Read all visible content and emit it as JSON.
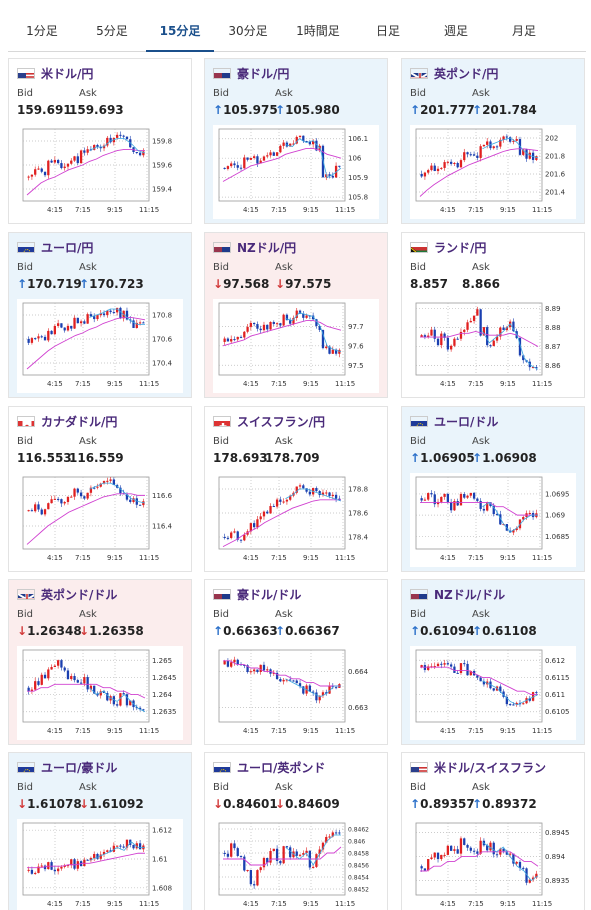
{
  "tabs": [
    {
      "label": "1分足",
      "active": false
    },
    {
      "label": "5分足",
      "active": false
    },
    {
      "label": "15分足",
      "active": true
    },
    {
      "label": "30分足",
      "active": false
    },
    {
      "label": "1時間足",
      "active": false
    },
    {
      "label": "日足",
      "active": false
    },
    {
      "label": "週足",
      "active": false
    },
    {
      "label": "月足",
      "active": false
    }
  ],
  "labels": {
    "bid": "Bid",
    "ask": "Ask"
  },
  "xticks": [
    "4:15",
    "7:15",
    "9:15",
    "11:15"
  ],
  "pairs": [
    {
      "name": "米ドル/円",
      "flag": "us-jp",
      "bg": "white",
      "bid": "159.691",
      "ask": "159.693",
      "bid_dir": "",
      "ask_dir": "",
      "chart_data": {
        "type": "candlestick",
        "y_ticks": [
          "159.8",
          "159.6",
          "159.4"
        ],
        "ylim": [
          159.3,
          159.9
        ],
        "trend": [
          159.5,
          159.55,
          159.55,
          159.6,
          159.62,
          159.6,
          159.62,
          159.65,
          159.7,
          159.72,
          159.75,
          159.75,
          159.8,
          159.82,
          159.82,
          159.78,
          159.72,
          159.7
        ],
        "ma": [
          159.35,
          159.4,
          159.45,
          159.48,
          159.5,
          159.53,
          159.56,
          159.58,
          159.6,
          159.63,
          159.65,
          159.68,
          159.7,
          159.72,
          159.73,
          159.73,
          159.72,
          159.72
        ]
      }
    },
    {
      "name": "豪ドル/円",
      "flag": "au-jp",
      "bg": "blue",
      "bid": "105.975",
      "ask": "105.980",
      "bid_dir": "up",
      "ask_dir": "up",
      "chart_data": {
        "type": "candlestick",
        "y_ticks": [
          "106.1",
          "106",
          "105.9",
          "105.8"
        ],
        "ylim": [
          105.78,
          106.15
        ],
        "trend": [
          105.95,
          105.97,
          105.95,
          106.0,
          106.02,
          105.98,
          106.0,
          106.03,
          106.05,
          106.07,
          106.06,
          106.1,
          106.08,
          106.09,
          106.05,
          105.9,
          105.92,
          105.95
        ],
        "ma": [
          105.88,
          105.9,
          105.92,
          105.94,
          105.96,
          105.97,
          105.98,
          105.99,
          106.0,
          106.02,
          106.03,
          106.04,
          106.05,
          106.05,
          106.04,
          106.02,
          106.01,
          106.0
        ]
      }
    },
    {
      "name": "英ポンド/円",
      "flag": "gb-jp",
      "bg": "blue",
      "bid": "201.777",
      "ask": "201.784",
      "bid_dir": "up",
      "ask_dir": "up",
      "chart_data": {
        "type": "candlestick",
        "y_ticks": [
          "202",
          "201.8",
          "201.6",
          "201.4"
        ],
        "ylim": [
          201.3,
          202.1
        ],
        "trend": [
          201.6,
          201.65,
          201.62,
          201.7,
          201.75,
          201.72,
          201.8,
          201.85,
          201.82,
          201.88,
          201.92,
          201.95,
          201.98,
          202.0,
          201.95,
          201.85,
          201.8,
          201.78
        ],
        "ma": [
          201.35,
          201.42,
          201.48,
          201.53,
          201.58,
          201.62,
          201.66,
          201.7,
          201.73,
          201.76,
          201.79,
          201.82,
          201.85,
          201.87,
          201.88,
          201.88,
          201.87,
          201.86
        ]
      }
    },
    {
      "name": "ユーロ/円",
      "flag": "eu-jp",
      "bg": "blue",
      "bid": "170.719",
      "ask": "170.723",
      "bid_dir": "up",
      "ask_dir": "up",
      "chart_data": {
        "type": "candlestick",
        "y_ticks": [
          "170.8",
          "170.6",
          "170.4"
        ],
        "ylim": [
          170.3,
          170.9
        ],
        "trend": [
          170.6,
          170.62,
          170.6,
          170.65,
          170.7,
          170.68,
          170.72,
          170.75,
          170.74,
          170.78,
          170.8,
          170.82,
          170.85,
          170.85,
          170.8,
          170.75,
          170.72,
          170.72
        ],
        "ma": [
          170.35,
          170.4,
          170.45,
          170.5,
          170.54,
          170.57,
          170.6,
          170.63,
          170.65,
          170.68,
          170.7,
          170.73,
          170.75,
          170.77,
          170.78,
          170.78,
          170.77,
          170.76
        ]
      }
    },
    {
      "name": "NZドル/円",
      "flag": "nz-jp",
      "bg": "pink",
      "bid": "97.568",
      "ask": "97.575",
      "bid_dir": "down",
      "ask_dir": "down",
      "chart_data": {
        "type": "candlestick",
        "y_ticks": [
          "97.7",
          "97.6",
          "97.5"
        ],
        "ylim": [
          97.45,
          97.82
        ],
        "trend": [
          97.62,
          97.65,
          97.63,
          97.68,
          97.7,
          97.67,
          97.7,
          97.72,
          97.7,
          97.74,
          97.73,
          97.77,
          97.76,
          97.75,
          97.7,
          97.6,
          97.58,
          97.57
        ],
        "ma": [
          97.6,
          97.61,
          97.62,
          97.63,
          97.65,
          97.66,
          97.67,
          97.68,
          97.69,
          97.7,
          97.71,
          97.72,
          97.73,
          97.73,
          97.72,
          97.7,
          97.69,
          97.68
        ]
      }
    },
    {
      "name": "ランド/円",
      "flag": "za-jp",
      "bg": "white",
      "bid": "8.857",
      "ask": "8.866",
      "bid_dir": "",
      "ask_dir": "",
      "chart_data": {
        "type": "candlestick",
        "y_ticks": [
          "8.89",
          "8.88",
          "8.87",
          "8.86"
        ],
        "ylim": [
          8.855,
          8.893
        ],
        "trend": [
          8.875,
          8.878,
          8.872,
          8.875,
          8.87,
          8.876,
          8.88,
          8.884,
          8.888,
          8.878,
          8.872,
          8.875,
          8.878,
          8.882,
          8.876,
          8.864,
          8.86,
          8.858
        ],
        "ma": [
          8.875,
          8.875,
          8.875,
          8.875,
          8.875,
          8.876,
          8.877,
          8.877,
          8.878,
          8.877,
          8.876,
          8.876,
          8.876,
          8.877,
          8.876,
          8.874,
          8.872,
          8.87
        ]
      }
    },
    {
      "name": "カナダドル/円",
      "flag": "ca-jp",
      "bg": "white",
      "bid": "116.553",
      "ask": "116.559",
      "bid_dir": "",
      "ask_dir": "",
      "chart_data": {
        "type": "candlestick",
        "y_ticks": [
          "116.6",
          "116.4"
        ],
        "ylim": [
          116.25,
          116.72
        ],
        "trend": [
          116.5,
          116.52,
          116.5,
          116.55,
          116.58,
          116.56,
          116.6,
          116.62,
          116.6,
          116.64,
          116.66,
          116.68,
          116.68,
          116.66,
          116.62,
          116.58,
          116.56,
          116.55
        ],
        "ma": [
          116.28,
          116.32,
          116.36,
          116.4,
          116.43,
          116.46,
          116.49,
          116.51,
          116.53,
          116.55,
          116.57,
          116.59,
          116.6,
          116.61,
          116.61,
          116.61,
          116.6,
          116.6
        ]
      }
    },
    {
      "name": "スイスフラン/円",
      "flag": "ch-jp",
      "bg": "white",
      "bid": "178.693",
      "ask": "178.709",
      "bid_dir": "",
      "ask_dir": "",
      "chart_data": {
        "type": "candlestick",
        "y_ticks": [
          "178.8",
          "178.6",
          "178.4"
        ],
        "ylim": [
          178.3,
          178.9
        ],
        "trend": [
          178.4,
          178.42,
          178.4,
          178.45,
          178.5,
          178.55,
          178.6,
          178.65,
          178.7,
          178.72,
          178.75,
          178.8,
          178.8,
          178.78,
          178.76,
          178.74,
          178.72,
          178.7
        ],
        "ma": [
          178.32,
          178.35,
          178.38,
          178.42,
          178.45,
          178.48,
          178.52,
          178.55,
          178.58,
          178.61,
          178.64,
          178.66,
          178.68,
          178.7,
          178.71,
          178.71,
          178.71,
          178.71
        ]
      }
    },
    {
      "name": "ユーロ/ドル",
      "flag": "eu-us",
      "bg": "blue",
      "bid": "1.06905",
      "ask": "1.06908",
      "bid_dir": "up",
      "ask_dir": "up",
      "chart_data": {
        "type": "candlestick",
        "y_ticks": [
          "1.0695",
          "1.069",
          "1.0685"
        ],
        "ylim": [
          1.0682,
          1.0699
        ],
        "trend": [
          1.0694,
          1.0695,
          1.0693,
          1.0694,
          1.0692,
          1.0693,
          1.0694,
          1.0695,
          1.0693,
          1.0692,
          1.0693,
          1.0691,
          1.0688,
          1.0686,
          1.0687,
          1.0689,
          1.069,
          1.069
        ],
        "ma": [
          1.0693,
          1.0693,
          1.0693,
          1.0693,
          1.0693,
          1.0693,
          1.0693,
          1.0693,
          1.0693,
          1.0693,
          1.0693,
          1.0692,
          1.0692,
          1.0691,
          1.069,
          1.069,
          1.069,
          1.069
        ]
      }
    },
    {
      "name": "英ポンド/ドル",
      "flag": "gb-us",
      "bg": "pink",
      "bid": "1.26348",
      "ask": "1.26358",
      "bid_dir": "down",
      "ask_dir": "down",
      "chart_data": {
        "type": "candlestick",
        "y_ticks": [
          "1.265",
          "1.2645",
          "1.264",
          "1.2635"
        ],
        "ylim": [
          1.2632,
          1.2653
        ],
        "trend": [
          1.2642,
          1.2644,
          1.2646,
          1.2648,
          1.2649,
          1.2647,
          1.2645,
          1.2643,
          1.2644,
          1.2642,
          1.264,
          1.2641,
          1.2639,
          1.2638,
          1.264,
          1.2638,
          1.2636,
          1.2635
        ],
        "ma": [
          1.2641,
          1.2641,
          1.2642,
          1.2642,
          1.2643,
          1.2643,
          1.2643,
          1.2643,
          1.2643,
          1.2643,
          1.2643,
          1.2642,
          1.2642,
          1.2641,
          1.2641,
          1.264,
          1.264,
          1.2639
        ]
      }
    },
    {
      "name": "豪ドル/ドル",
      "flag": "au-us",
      "bg": "white",
      "bid": "0.66363",
      "ask": "0.66367",
      "bid_dir": "up",
      "ask_dir": "up",
      "chart_data": {
        "type": "candlestick",
        "y_ticks": [
          "0.664",
          "0.663"
        ],
        "ylim": [
          0.6626,
          0.6646
        ],
        "trend": [
          0.6642,
          0.6643,
          0.6642,
          0.6641,
          0.664,
          0.6641,
          0.664,
          0.6639,
          0.6638,
          0.6638,
          0.6637,
          0.6636,
          0.6635,
          0.6634,
          0.6633,
          0.6634,
          0.6636,
          0.6636
        ],
        "ma": [
          0.6643,
          0.6643,
          0.6642,
          0.6642,
          0.6641,
          0.6641,
          0.664,
          0.664,
          0.6639,
          0.6639,
          0.6638,
          0.6638,
          0.6637,
          0.6637,
          0.6636,
          0.6636,
          0.6636,
          0.6636
        ]
      }
    },
    {
      "name": "NZドル/ドル",
      "flag": "nz-us",
      "bg": "blue",
      "bid": "0.61094",
      "ask": "0.61108",
      "bid_dir": "up",
      "ask_dir": "up",
      "chart_data": {
        "type": "candlestick",
        "y_ticks": [
          "0.612",
          "0.6115",
          "0.611",
          "0.6105"
        ],
        "ylim": [
          0.6102,
          0.6123
        ],
        "trend": [
          0.6118,
          0.6119,
          0.6118,
          0.6119,
          0.6118,
          0.6117,
          0.6118,
          0.6116,
          0.6115,
          0.6114,
          0.6113,
          0.6112,
          0.611,
          0.6108,
          0.6107,
          0.6108,
          0.6109,
          0.611
        ],
        "ma": [
          0.6118,
          0.6118,
          0.6118,
          0.6118,
          0.6118,
          0.6117,
          0.6117,
          0.6117,
          0.6116,
          0.6115,
          0.6115,
          0.6114,
          0.6113,
          0.6112,
          0.6111,
          0.6111,
          0.611,
          0.611
        ]
      }
    },
    {
      "name": "ユーロ/豪ドル",
      "flag": "eu-au",
      "bg": "blue",
      "bid": "1.61078",
      "ask": "1.61092",
      "bid_dir": "down",
      "ask_dir": "down",
      "chart_data": {
        "type": "candlestick",
        "y_ticks": [
          "1.612",
          "1.61",
          "1.608"
        ],
        "ylim": [
          1.6075,
          1.6125
        ],
        "trend": [
          1.6092,
          1.6093,
          1.6094,
          1.6095,
          1.6094,
          1.6095,
          1.6097,
          1.6096,
          1.6098,
          1.6099,
          1.6101,
          1.6103,
          1.6105,
          1.6108,
          1.6106,
          1.6112,
          1.6108,
          1.6108
        ],
        "ma": [
          1.6094,
          1.6094,
          1.6094,
          1.6095,
          1.6095,
          1.6095,
          1.6096,
          1.6096,
          1.6097,
          1.6097,
          1.6098,
          1.6099,
          1.61,
          1.6101,
          1.6102,
          1.6103,
          1.6104,
          1.6104
        ]
      }
    },
    {
      "name": "ユーロ/英ポンド",
      "flag": "eu-gb",
      "bg": "white",
      "bid": "0.84601",
      "ask": "0.84609",
      "bid_dir": "down",
      "ask_dir": "down",
      "chart_data": {
        "type": "candlestick",
        "y_ticks": [
          "0.8462",
          "0.846",
          "0.8458",
          "0.8456",
          "0.8454",
          "0.8452"
        ],
        "ylim": [
          0.8451,
          0.8463
        ],
        "trend": [
          0.8458,
          0.8459,
          0.8457,
          0.8455,
          0.8453,
          0.8455,
          0.8457,
          0.8458,
          0.8457,
          0.8459,
          0.8458,
          0.8457,
          0.8458,
          0.8456,
          0.8458,
          0.846,
          0.8461,
          0.8461
        ],
        "ma": [
          0.8457,
          0.8457,
          0.8457,
          0.8457,
          0.8456,
          0.8456,
          0.8456,
          0.8457,
          0.8457,
          0.8457,
          0.8457,
          0.8457,
          0.8457,
          0.8457,
          0.8457,
          0.8458,
          0.8458,
          0.8459
        ]
      }
    },
    {
      "name": "米ドル/スイスフラン",
      "flag": "us-ch",
      "bg": "white",
      "bid": "0.89357",
      "ask": "0.89372",
      "bid_dir": "up",
      "ask_dir": "up",
      "chart_data": {
        "type": "candlestick",
        "y_ticks": [
          "0.8945",
          "0.894",
          "0.8935"
        ],
        "ylim": [
          0.8932,
          0.8947
        ],
        "trend": [
          0.8938,
          0.8939,
          0.894,
          0.8941,
          0.8942,
          0.8941,
          0.8943,
          0.8942,
          0.8941,
          0.8943,
          0.8942,
          0.8941,
          0.8942,
          0.894,
          0.8938,
          0.8937,
          0.8935,
          0.8936
        ],
        "ma": [
          0.8937,
          0.8937,
          0.8938,
          0.8938,
          0.8939,
          0.8939,
          0.894,
          0.894,
          0.894,
          0.8941,
          0.8941,
          0.8941,
          0.8941,
          0.8941,
          0.894,
          0.8939,
          0.8939,
          0.8938
        ]
      }
    }
  ]
}
